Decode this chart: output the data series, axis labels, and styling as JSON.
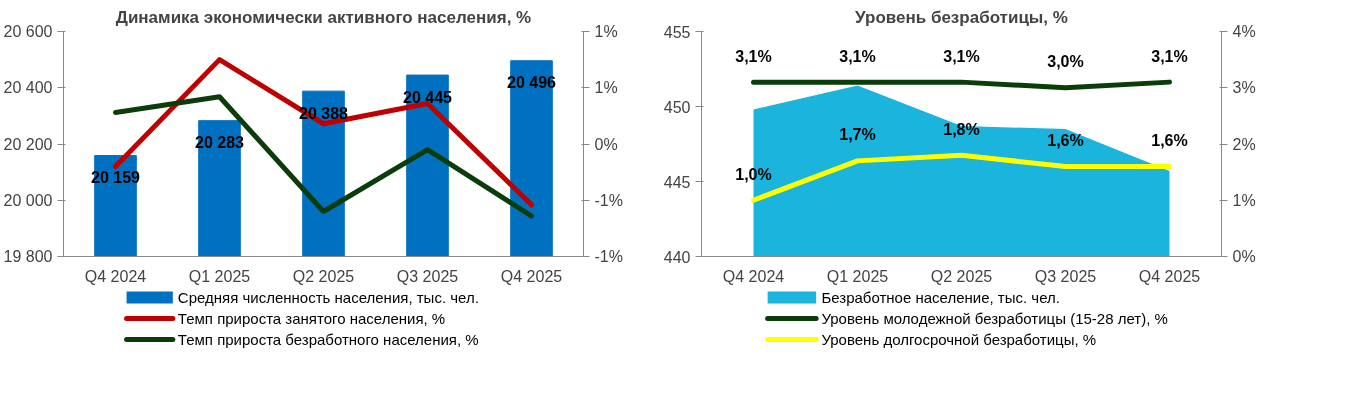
{
  "chart_data": [
    {
      "type": "bar",
      "title": "Динамика экономически активного населения, %",
      "categories": [
        "Q4 2024",
        "Q1 2025",
        "Q2 2025",
        "Q3 2025",
        "Q4 2025"
      ],
      "ylim": [
        19800,
        20600
      ],
      "yticks": [
        {
          "value": 19800,
          "label": "19 800"
        },
        {
          "value": 20000,
          "label": "20 000"
        },
        {
          "value": 20200,
          "label": "20 200"
        },
        {
          "value": 20400,
          "label": "20 400"
        },
        {
          "value": 20600,
          "label": "20 600"
        }
      ],
      "y2lim": [
        -1,
        1
      ],
      "y2ticks": [
        {
          "value": -1,
          "label": "-1%"
        },
        {
          "value": -0.5,
          "label": "-1%"
        },
        {
          "value": 0,
          "label": "0%"
        },
        {
          "value": 0.5,
          "label": "1%"
        },
        {
          "value": 1,
          "label": "1%"
        }
      ],
      "grid": false,
      "legend": "bottom",
      "series": [
        {
          "name": "Средняя численность населения, тыс. чел.",
          "color": "#0070c0",
          "values": [
            20159,
            20283,
            20388,
            20445,
            20496
          ],
          "value_labels": [
            "20 159",
            "20 283",
            "20 388",
            "20 445",
            "20 496"
          ]
        },
        {
          "name": "Темп прироста занятого населения, %",
          "type": "line",
          "axis": "y2",
          "color": "#c00000",
          "values": [
            -0.2,
            0.75,
            0.18,
            0.36,
            -0.54
          ]
        },
        {
          "name": "Темп прироста безработного населения, %",
          "type": "line",
          "axis": "y2",
          "color": "#0a3d0a",
          "values": [
            0.28,
            0.42,
            -0.6,
            -0.05,
            -0.64
          ]
        }
      ]
    },
    {
      "type": "area",
      "title": "Уровень безработицы, %",
      "categories": [
        "Q4 2024",
        "Q1 2025",
        "Q2 2025",
        "Q3 2025",
        "Q4 2025"
      ],
      "ylim": [
        440,
        455
      ],
      "yticks": [
        440,
        445,
        450,
        455
      ],
      "y2lim": [
        0,
        4
      ],
      "y2ticks": [
        {
          "value": 0,
          "label": "0%"
        },
        {
          "value": 1,
          "label": "1%"
        },
        {
          "value": 2,
          "label": "2%"
        },
        {
          "value": 3,
          "label": "3%"
        },
        {
          "value": 4,
          "label": "4%"
        }
      ],
      "grid": false,
      "legend": "bottom",
      "series": [
        {
          "name": "Безработное население, тыс. чел.",
          "color": "#1ab4dc",
          "values": [
            449.8,
            451.4,
            448.7,
            448.5,
            445.7
          ]
        },
        {
          "name": "Уровень молодежной безработицы (15-28 лет), %",
          "type": "line",
          "axis": "y2",
          "color": "#0a3d0a",
          "values": [
            3.1,
            3.1,
            3.1,
            3.0,
            3.1
          ],
          "value_labels": [
            "3,1%",
            "3,1%",
            "3,1%",
            "3,0%",
            "3,1%"
          ]
        },
        {
          "name": "Уровень долгосрочной безработицы, %",
          "type": "line",
          "axis": "y2",
          "color": "#ffff00",
          "values": [
            1.0,
            1.7,
            1.8,
            1.6,
            1.6
          ],
          "value_labels": [
            "1,0%",
            "1,7%",
            "1,8%",
            "1,6%",
            "1,6%"
          ]
        }
      ]
    }
  ]
}
